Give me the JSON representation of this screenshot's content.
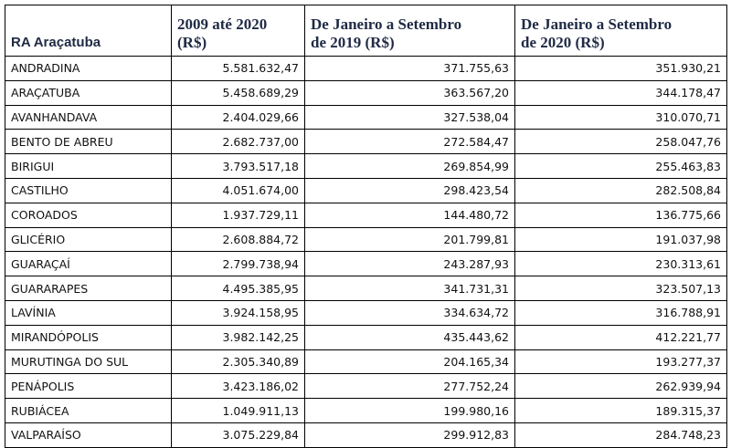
{
  "table": {
    "headers": [
      [
        "RA Araçatuba"
      ],
      [
        "2009 até 2020",
        "(R$)"
      ],
      [
        "De Janeiro a Setembro",
        "de 2019 (R$)"
      ],
      [
        "De Janeiro a Setembro",
        "de 2020 (R$)"
      ]
    ],
    "rows": [
      [
        "ANDRADINA",
        "5.581.632,47",
        "371.755,63",
        "351.930,21"
      ],
      [
        "ARAÇATUBA",
        "5.458.689,29",
        "363.567,20",
        "344.178,47"
      ],
      [
        "AVANHANDAVA",
        "2.404.029,66",
        "327.538,04",
        "310.070,71"
      ],
      [
        "BENTO DE ABREU",
        "2.682.737,00",
        "272.584,47",
        "258.047,76"
      ],
      [
        "BIRIGUI",
        "3.793.517,18",
        "269.854,99",
        "255.463,83"
      ],
      [
        "CASTILHO",
        "4.051.674,00",
        "298.423,54",
        "282.508,84"
      ],
      [
        "COROADOS",
        "1.937.729,11",
        "144.480,72",
        "136.775,66"
      ],
      [
        "GLICÉRIO",
        "2.608.884,72",
        "201.799,81",
        "191.037,98"
      ],
      [
        "GUARAÇAÍ",
        "2.799.738,94",
        "243.287,93",
        "230.313,61"
      ],
      [
        "GUARARAPES",
        "4.495.385,95",
        "341.731,31",
        "323.507,13"
      ],
      [
        "LAVÍNIA",
        "3.924.158,95",
        "334.634,72",
        "316.788,91"
      ],
      [
        "MIRANDÓPOLIS",
        "3.982.142,25",
        "435.443,62",
        "412.221,77"
      ],
      [
        "MURUTINGA DO SUL",
        "2.305.340,89",
        "204.165,34",
        "193.277,37"
      ],
      [
        "PENÁPOLIS",
        "3.423.186,02",
        "277.752,24",
        "262.939,94"
      ],
      [
        "RUBIÁCEA",
        "1.049.911,13",
        "199.980,16",
        "189.315,37"
      ],
      [
        "VALPARAÍSO",
        "3.075.229,84",
        "299.912,83",
        "284.748,23"
      ]
    ]
  }
}
